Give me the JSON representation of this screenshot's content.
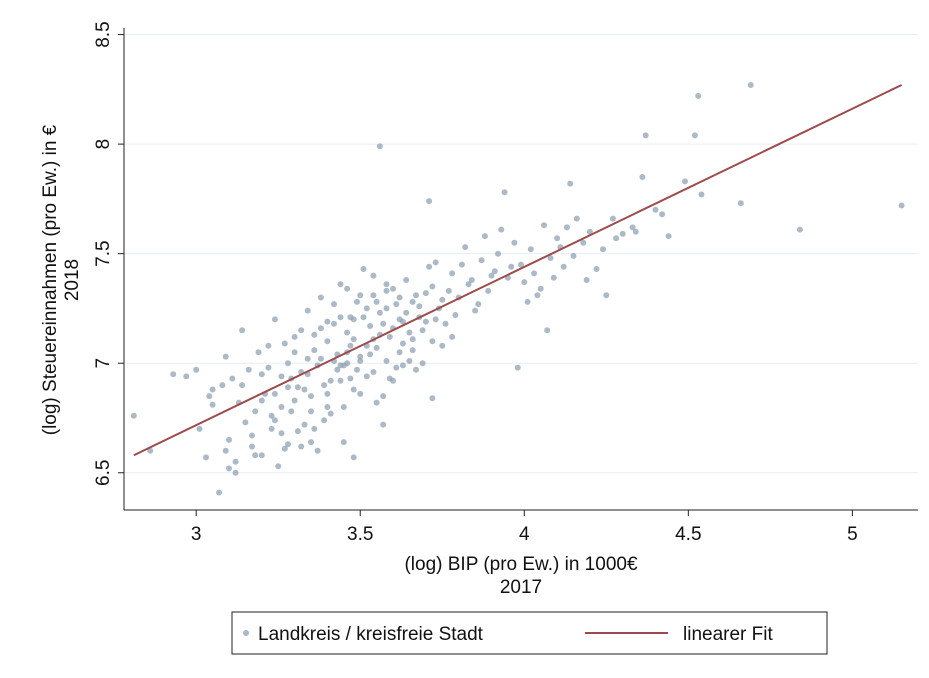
{
  "chart_data": {
    "type": "scatter",
    "xlabel": [
      "(log) BIP (pro Ew.) in 1000€",
      "2017"
    ],
    "ylabel": [
      "(log) Steuereinnahmen (pro Ew.) in €",
      "2018"
    ],
    "xlim": [
      2.78,
      5.2
    ],
    "ylim": [
      6.33,
      8.53
    ],
    "xticks": [
      3,
      3.5,
      4,
      4.5,
      5
    ],
    "yticks": [
      6.5,
      7,
      7.5,
      8,
      8.5
    ],
    "xtick_labels": [
      "3",
      "3.5",
      "4",
      "4.5",
      "5"
    ],
    "ytick_labels": [
      "6.5",
      "7",
      "7.5",
      "8",
      "8.5"
    ],
    "grid": "horizontal",
    "legend_position": "bottom",
    "colors": {
      "points": "#8c9fb3",
      "fit": "#9e4a4a"
    },
    "series": [
      {
        "name": "Landkreis / kreisfreie Stadt",
        "kind": "scatter",
        "points": [
          [
            2.81,
            6.76
          ],
          [
            2.86,
            6.6
          ],
          [
            2.93,
            6.95
          ],
          [
            2.97,
            6.94
          ],
          [
            3.0,
            6.97
          ],
          [
            3.01,
            6.7
          ],
          [
            3.03,
            6.57
          ],
          [
            3.04,
            6.85
          ],
          [
            3.05,
            6.81
          ],
          [
            3.07,
            6.41
          ],
          [
            3.08,
            6.9
          ],
          [
            3.09,
            7.03
          ],
          [
            3.1,
            6.65
          ],
          [
            3.11,
            6.93
          ],
          [
            3.12,
            6.55
          ],
          [
            3.12,
            6.5
          ],
          [
            3.13,
            6.82
          ],
          [
            3.14,
            7.15
          ],
          [
            3.15,
            6.73
          ],
          [
            3.16,
            6.97
          ],
          [
            3.17,
            6.62
          ],
          [
            3.18,
            6.78
          ],
          [
            3.19,
            7.05
          ],
          [
            3.2,
            6.58
          ],
          [
            3.21,
            6.86
          ],
          [
            3.22,
            6.98
          ],
          [
            3.23,
            6.7
          ],
          [
            3.24,
            7.2
          ],
          [
            3.25,
            6.53
          ],
          [
            3.26,
            6.8
          ],
          [
            3.27,
            7.09
          ],
          [
            3.28,
            6.63
          ],
          [
            3.29,
            6.93
          ],
          [
            3.3,
            7.12
          ],
          [
            3.31,
            6.69
          ],
          [
            3.32,
            6.96
          ],
          [
            3.33,
            6.72
          ],
          [
            3.34,
            7.24
          ],
          [
            3.35,
            6.85
          ],
          [
            3.36,
            7.06
          ],
          [
            3.37,
            6.6
          ],
          [
            3.38,
            7.3
          ],
          [
            3.39,
            6.9
          ],
          [
            3.4,
            7.1
          ],
          [
            3.41,
            6.77
          ],
          [
            3.42,
            7.18
          ],
          [
            3.43,
            6.97
          ],
          [
            3.44,
            7.36
          ],
          [
            3.45,
            6.64
          ],
          [
            3.46,
            7.05
          ],
          [
            3.47,
            7.21
          ],
          [
            3.48,
            6.88
          ],
          [
            3.49,
            7.28
          ],
          [
            3.5,
            7.01
          ],
          [
            3.51,
            7.43
          ],
          [
            3.52,
            6.94
          ],
          [
            3.53,
            7.17
          ],
          [
            3.54,
            7.31
          ],
          [
            3.55,
            7.07
          ],
          [
            3.56,
            7.99
          ],
          [
            3.57,
            6.85
          ],
          [
            3.58,
            7.25
          ],
          [
            3.59,
            7.12
          ],
          [
            3.6,
            7.34
          ],
          [
            3.61,
            6.98
          ],
          [
            3.62,
            7.2
          ],
          [
            3.63,
            7.09
          ],
          [
            3.64,
            7.38
          ],
          [
            3.65,
            7.14
          ],
          [
            3.66,
            7.28
          ],
          [
            3.67,
            6.97
          ],
          [
            3.68,
            7.21
          ],
          [
            3.7,
            7.32
          ],
          [
            3.71,
            7.74
          ],
          [
            3.72,
            7.1
          ],
          [
            3.73,
            7.46
          ],
          [
            3.74,
            7.25
          ],
          [
            3.76,
            7.18
          ],
          [
            3.78,
            7.41
          ],
          [
            3.8,
            7.3
          ],
          [
            3.82,
            7.53
          ],
          [
            3.84,
            7.38
          ],
          [
            3.86,
            7.27
          ],
          [
            3.88,
            7.58
          ],
          [
            3.9,
            7.4
          ],
          [
            3.92,
            7.5
          ],
          [
            3.94,
            7.78
          ],
          [
            3.96,
            7.44
          ],
          [
            3.98,
            6.98
          ],
          [
            4.0,
            7.37
          ],
          [
            4.02,
            7.52
          ],
          [
            4.04,
            7.31
          ],
          [
            4.06,
            7.63
          ],
          [
            4.08,
            7.48
          ],
          [
            4.1,
            7.57
          ],
          [
            4.12,
            7.44
          ],
          [
            4.14,
            7.82
          ],
          [
            4.16,
            7.66
          ],
          [
            4.18,
            7.55
          ],
          [
            4.2,
            7.6
          ],
          [
            4.22,
            7.43
          ],
          [
            4.25,
            7.31
          ],
          [
            4.27,
            7.66
          ],
          [
            4.3,
            7.59
          ],
          [
            4.33,
            7.62
          ],
          [
            4.36,
            7.85
          ],
          [
            4.37,
            8.04
          ],
          [
            4.4,
            7.7
          ],
          [
            4.44,
            7.58
          ],
          [
            4.49,
            7.83
          ],
          [
            4.52,
            8.04
          ],
          [
            4.53,
            8.22
          ],
          [
            4.54,
            7.77
          ],
          [
            4.66,
            7.73
          ],
          [
            4.69,
            8.27
          ],
          [
            4.84,
            7.61
          ],
          [
            5.15,
            7.72
          ],
          [
            3.1,
            6.52
          ],
          [
            3.17,
            6.67
          ],
          [
            3.23,
            6.76
          ],
          [
            3.27,
            6.61
          ],
          [
            3.3,
            6.83
          ],
          [
            3.33,
            6.88
          ],
          [
            3.35,
            6.64
          ],
          [
            3.37,
            6.99
          ],
          [
            3.39,
            6.74
          ],
          [
            3.41,
            6.92
          ],
          [
            3.43,
            7.04
          ],
          [
            3.45,
            6.8
          ],
          [
            3.47,
            6.93
          ],
          [
            3.48,
            7.11
          ],
          [
            3.5,
            6.86
          ],
          [
            3.52,
            7.08
          ],
          [
            3.54,
            6.96
          ],
          [
            3.56,
            7.13
          ],
          [
            3.58,
            7.01
          ],
          [
            3.6,
            7.16
          ],
          [
            3.62,
            7.05
          ],
          [
            3.64,
            7.23
          ],
          [
            3.66,
            7.11
          ],
          [
            3.68,
            7.26
          ],
          [
            3.7,
            7.19
          ],
          [
            3.72,
            7.35
          ],
          [
            3.75,
            7.29
          ],
          [
            3.77,
            7.33
          ],
          [
            3.79,
            7.22
          ],
          [
            3.81,
            7.45
          ],
          [
            3.83,
            7.36
          ],
          [
            3.85,
            7.24
          ],
          [
            3.87,
            7.47
          ],
          [
            3.89,
            7.33
          ],
          [
            3.91,
            7.42
          ],
          [
            3.93,
            7.61
          ],
          [
            3.95,
            7.39
          ],
          [
            3.97,
            7.55
          ],
          [
            3.99,
            7.45
          ],
          [
            4.01,
            7.28
          ],
          [
            4.03,
            7.41
          ],
          [
            4.05,
            7.34
          ],
          [
            4.07,
            7.15
          ],
          [
            4.09,
            7.39
          ],
          [
            4.11,
            7.53
          ],
          [
            4.13,
            7.62
          ],
          [
            4.15,
            7.49
          ],
          [
            4.19,
            7.38
          ],
          [
            4.24,
            7.52
          ],
          [
            4.28,
            7.57
          ],
          [
            4.34,
            7.6
          ],
          [
            4.42,
            7.68
          ],
          [
            3.05,
            6.88
          ],
          [
            3.09,
            6.6
          ],
          [
            3.14,
            6.9
          ],
          [
            3.18,
            6.58
          ],
          [
            3.2,
            6.95
          ],
          [
            3.22,
            7.08
          ],
          [
            3.24,
            6.86
          ],
          [
            3.26,
            6.68
          ],
          [
            3.28,
            7.0
          ],
          [
            3.29,
            6.78
          ],
          [
            3.31,
            6.89
          ],
          [
            3.32,
            7.15
          ],
          [
            3.34,
            6.95
          ],
          [
            3.36,
            6.7
          ],
          [
            3.38,
            7.02
          ],
          [
            3.4,
            6.86
          ],
          [
            3.42,
            7.27
          ],
          [
            3.44,
            6.99
          ],
          [
            3.46,
            7.14
          ],
          [
            3.49,
            6.97
          ],
          [
            3.51,
            7.21
          ],
          [
            3.53,
            7.04
          ],
          [
            3.55,
            7.28
          ],
          [
            3.57,
            7.18
          ],
          [
            3.59,
            6.93
          ],
          [
            3.61,
            7.27
          ],
          [
            3.63,
            7.19
          ],
          [
            3.65,
            7.01
          ],
          [
            3.67,
            7.31
          ],
          [
            3.69,
            7.15
          ],
          [
            3.71,
            7.44
          ],
          [
            3.73,
            7.2
          ],
          [
            3.36,
            7.13
          ],
          [
            3.4,
            7.19
          ],
          [
            3.44,
            7.21
          ],
          [
            3.48,
            7.2
          ],
          [
            3.52,
            7.25
          ],
          [
            3.56,
            7.23
          ],
          [
            3.58,
            7.33
          ],
          [
            3.62,
            7.3
          ],
          [
            3.46,
            7.34
          ],
          [
            3.5,
            7.31
          ],
          [
            3.54,
            7.4
          ],
          [
            3.58,
            7.36
          ],
          [
            3.3,
            7.05
          ],
          [
            3.34,
            7.02
          ],
          [
            3.38,
            7.16
          ],
          [
            3.42,
            7.01
          ],
          [
            3.46,
            7.0
          ],
          [
            3.5,
            7.03
          ],
          [
            3.54,
            7.11
          ],
          [
            3.26,
            6.94
          ],
          [
            3.2,
            6.83
          ],
          [
            3.24,
            6.74
          ],
          [
            3.32,
            6.62
          ],
          [
            3.35,
            6.78
          ],
          [
            3.28,
            6.89
          ],
          [
            3.4,
            6.8
          ],
          [
            3.44,
            6.92
          ],
          [
            3.48,
            6.57
          ],
          [
            3.45,
            6.99
          ],
          [
            3.47,
            7.08
          ],
          [
            3.55,
            6.82
          ],
          [
            3.6,
            6.92
          ],
          [
            3.63,
            6.99
          ],
          [
            3.57,
            6.72
          ],
          [
            3.66,
            7.06
          ],
          [
            3.69,
            7.0
          ],
          [
            3.72,
            6.84
          ],
          [
            3.75,
            7.08
          ],
          [
            3.78,
            7.12
          ]
        ]
      },
      {
        "name": "linearer Fit",
        "kind": "line",
        "points": [
          [
            2.81,
            6.58
          ],
          [
            5.15,
            8.27
          ]
        ]
      }
    ]
  },
  "legend": {
    "scatter_label": "Landkreis / kreisfreie Stadt",
    "line_label": "linearer Fit"
  }
}
